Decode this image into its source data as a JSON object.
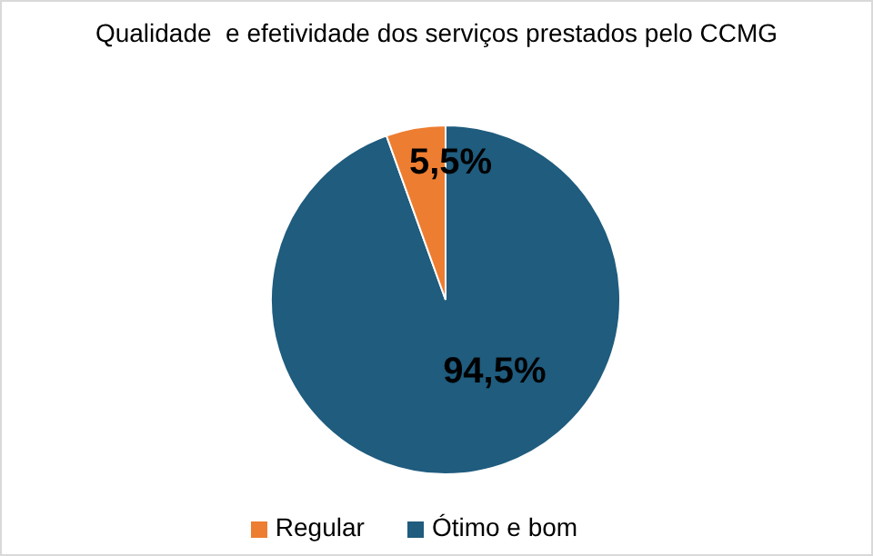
{
  "chart_data": {
    "type": "pie",
    "title": "Qualidade  e efetividade dos serviços prestados pelo CCMG",
    "categories": [
      "Ótimo e bom",
      "Regular"
    ],
    "values": [
      94.5,
      5.5
    ],
    "colors": [
      "#1f5c7e",
      "#ed7d31"
    ],
    "value_labels": [
      "94,5%",
      "5,5%"
    ],
    "legend": "bottom"
  }
}
